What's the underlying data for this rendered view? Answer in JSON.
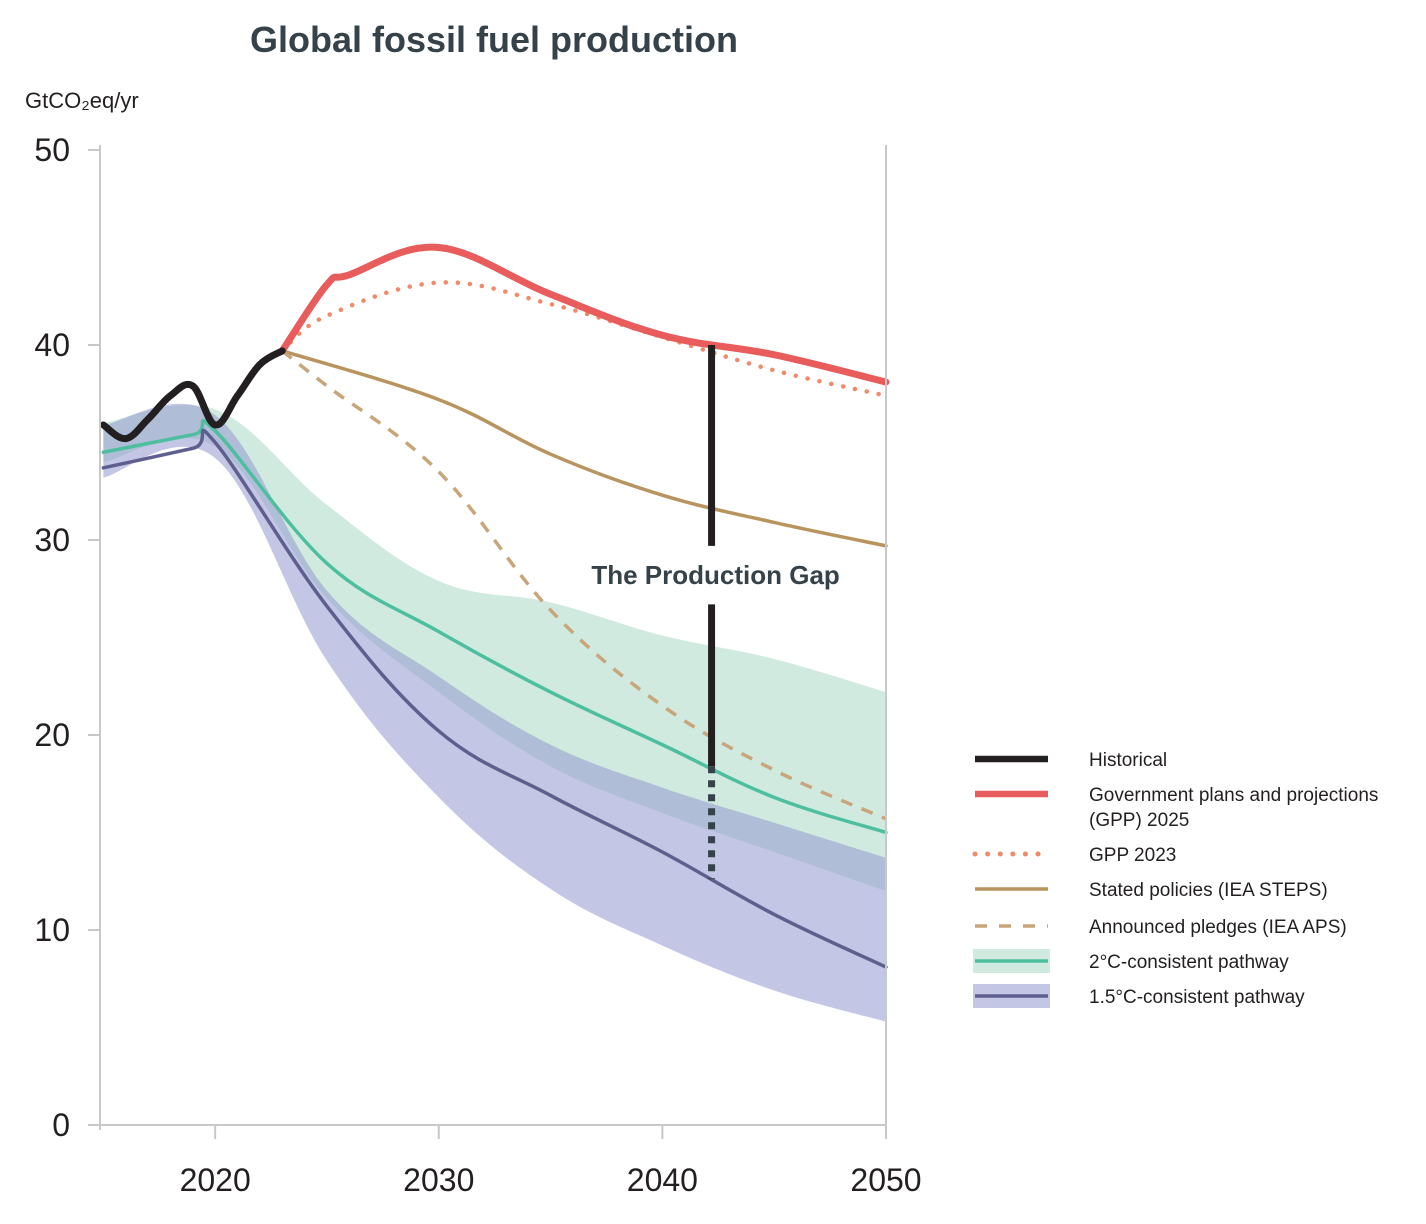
{
  "chart_data": {
    "type": "line",
    "title": "Global fossil fuel production",
    "ylabel": "GtCO₂eq/yr",
    "xlabel": "",
    "xlim": [
      2015,
      2050
    ],
    "ylim": [
      0,
      50
    ],
    "xticks": [
      2020,
      2030,
      2040,
      2050
    ],
    "yticks": [
      0,
      10,
      20,
      30,
      40,
      50
    ],
    "grid": false,
    "legend_position": "right",
    "annotation": {
      "text": "The Production Gap",
      "year": 2042.2,
      "gap_top": 40.0,
      "solid_bottom": 18.4,
      "gap_bottom": 12.6,
      "label_value": 28.2
    },
    "bands": [
      {
        "name": "2°C-consistent range",
        "color": "#a9d8c6",
        "x": [
          2015,
          2020,
          2025,
          2030,
          2035,
          2040,
          2045,
          2050
        ],
        "upper": [
          36.0,
          36.7,
          31.8,
          27.9,
          26.8,
          25.1,
          23.9,
          22.2
        ],
        "lower": [
          34.0,
          34.8,
          27.0,
          22.2,
          18.4,
          16.0,
          14.0,
          12.0
        ]
      },
      {
        "name": "1.5°C-consistent range",
        "color": "#9397d0",
        "x": [
          2015,
          2020,
          2025,
          2030,
          2035,
          2040,
          2045,
          2050
        ],
        "upper": [
          35.9,
          36.4,
          27.4,
          23.0,
          19.5,
          17.3,
          15.5,
          13.7
        ],
        "lower": [
          33.2,
          34.2,
          23.8,
          16.8,
          12.1,
          9.2,
          6.9,
          5.3
        ]
      }
    ],
    "series": [
      {
        "name": "Historical",
        "color": "#231f20",
        "style": "solid",
        "width": 7,
        "x": [
          2015,
          2016,
          2017,
          2018,
          2019,
          2020,
          2021,
          2022,
          2023
        ],
        "y": [
          35.9,
          35.2,
          36.2,
          37.4,
          37.9,
          35.9,
          37.4,
          39.0,
          39.7
        ]
      },
      {
        "name": "Government plans and projections (GPP) 2025",
        "color": "#e85c5c",
        "style": "solid",
        "width": 7,
        "x": [
          2023,
          2025,
          2026,
          2030,
          2035,
          2040,
          2045,
          2050
        ],
        "y": [
          39.7,
          43.1,
          43.6,
          45.0,
          42.6,
          40.5,
          39.5,
          38.1
        ]
      },
      {
        "name": "GPP 2023",
        "color": "#f08a6a",
        "style": "dotted",
        "width": 4.5,
        "x": [
          2023,
          2025,
          2030,
          2035,
          2040,
          2045,
          2050
        ],
        "y": [
          39.7,
          41.5,
          43.2,
          42.1,
          40.4,
          38.7,
          37.4
        ]
      },
      {
        "name": "Stated policies (IEA STEPS)",
        "color": "#b8945f",
        "style": "solid",
        "width": 3.5,
        "x": [
          2023,
          2030,
          2035,
          2040,
          2045,
          2050
        ],
        "y": [
          39.7,
          37.2,
          34.4,
          32.3,
          30.9,
          29.7
        ]
      },
      {
        "name": "Announced pledges (IEA APS)",
        "color": "#c9a57a",
        "style": "dashed",
        "width": 3.5,
        "x": [
          2023,
          2025,
          2030,
          2035,
          2040,
          2045,
          2050
        ],
        "y": [
          39.7,
          37.9,
          33.5,
          26.4,
          21.5,
          18.2,
          15.7
        ]
      },
      {
        "name": "2°C-consistent pathway",
        "color": "#4dbf9f",
        "style": "solid",
        "width": 3.5,
        "x": [
          2015,
          2019,
          2020,
          2025,
          2030,
          2035,
          2040,
          2045,
          2050
        ],
        "y": [
          34.5,
          35.4,
          35.6,
          28.8,
          25.3,
          22.2,
          19.5,
          16.8,
          15.0
        ]
      },
      {
        "name": "1.5°C-consistent pathway",
        "color": "#5e5f8e",
        "style": "solid",
        "width": 3.5,
        "x": [
          2015,
          2019,
          2020,
          2025,
          2030,
          2035,
          2040,
          2045,
          2050
        ],
        "y": [
          33.7,
          34.7,
          35.0,
          26.6,
          20.2,
          16.9,
          14.0,
          10.8,
          8.1
        ]
      }
    ],
    "legend": [
      {
        "label": "Historical"
      },
      {
        "label": "Government plans and projections",
        "label2": "(GPP) 2025"
      },
      {
        "label": "GPP 2023"
      },
      {
        "label": "Stated policies (IEA STEPS)"
      },
      {
        "label": "Announced pledges (IEA APS)"
      },
      {
        "label": "2°C-consistent pathway"
      },
      {
        "label": "1.5°C-consistent pathway"
      }
    ]
  }
}
